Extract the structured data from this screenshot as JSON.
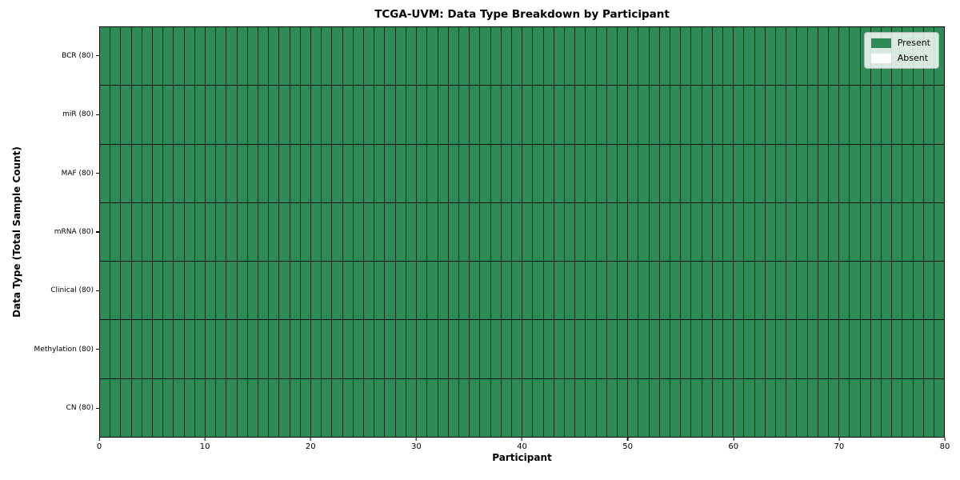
{
  "chart_data": {
    "type": "heatmap",
    "title": "TCGA-UVM: Data Type Breakdown by Participant",
    "xlabel": "Participant",
    "ylabel": "Data Type (Total Sample Count)",
    "participants": 80,
    "x_range": [
      0,
      80
    ],
    "x_ticks": [
      0,
      10,
      20,
      30,
      40,
      50,
      60,
      70,
      80
    ],
    "grid": true,
    "rows": [
      {
        "label": "BCR (80)",
        "present_count": 80,
        "absent_count": 0
      },
      {
        "label": "miR (80)",
        "present_count": 80,
        "absent_count": 0
      },
      {
        "label": "MAF (80)",
        "present_count": 80,
        "absent_count": 0
      },
      {
        "label": "mRNA (80)",
        "present_count": 80,
        "absent_count": 0
      },
      {
        "label": "Clinical (80)",
        "present_count": 80,
        "absent_count": 0
      },
      {
        "label": "Methylation (80)",
        "present_count": 80,
        "absent_count": 0
      },
      {
        "label": "CN (80)",
        "present_count": 80,
        "absent_count": 0
      }
    ],
    "legend": {
      "position": "upper right",
      "entries": [
        {
          "label": "Present",
          "color": "#2E8B57"
        },
        {
          "label": "Absent",
          "color": "#FFFFFF"
        }
      ]
    },
    "colors": {
      "present": "#2E8B57",
      "absent": "#FFFFFF",
      "cell_border": "rgba(0,0,0,0.65)",
      "row_border": "#111111"
    }
  }
}
